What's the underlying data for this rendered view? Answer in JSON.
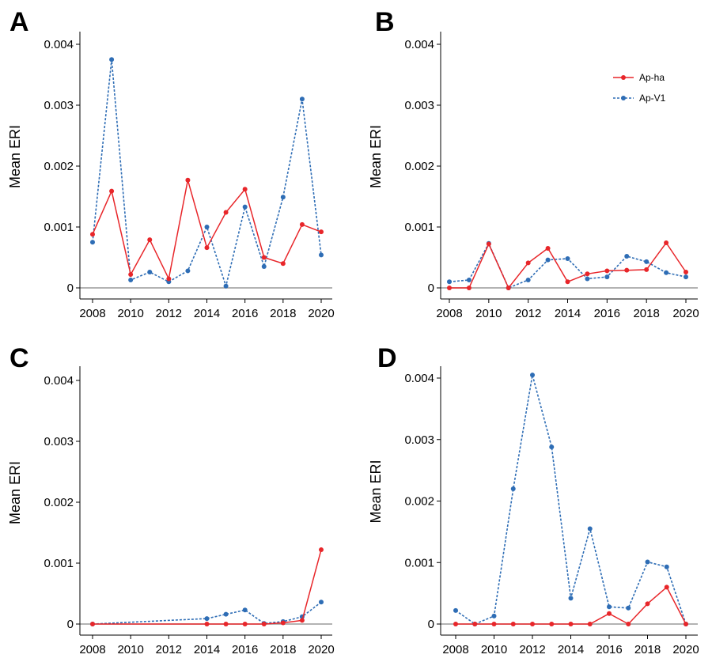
{
  "colors": {
    "ap_ha": "#e8262a",
    "ap_v1": "#2e6db5"
  },
  "chart_data": [
    {
      "type": "line",
      "panel": "A",
      "ylabel": "Mean ERI",
      "xlim": [
        2008,
        2020
      ],
      "ylim": [
        0,
        0.004
      ],
      "x_ticks": [
        "2008",
        "2010",
        "2012",
        "2014",
        "2016",
        "2018",
        "2020"
      ],
      "y_ticks": [
        "0",
        "0.001",
        "0.002",
        "0.003",
        "0.004"
      ],
      "legend": false,
      "series": [
        {
          "key": "ap_ha",
          "style": "solid",
          "x": [
            2008,
            2009,
            2010,
            2011,
            2012,
            2013,
            2014,
            2015,
            2016,
            2017,
            2018,
            2019,
            2020
          ],
          "y": [
            0.00088,
            0.00159,
            0.00022,
            0.00079,
            0.00015,
            0.00177,
            0.00066,
            0.00124,
            0.00162,
            0.0005,
            0.0004,
            0.00104,
            0.00092
          ]
        },
        {
          "key": "ap_v1",
          "style": "dotted",
          "x": [
            2008,
            2009,
            2010,
            2011,
            2012,
            2013,
            2014,
            2015,
            2016,
            2017,
            2018,
            2019,
            2020
          ],
          "y": [
            0.00075,
            0.00375,
            0.00013,
            0.00026,
            0.0001,
            0.00028,
            0.001,
            3e-05,
            0.00133,
            0.00035,
            0.00149,
            0.0031,
            0.00054
          ]
        }
      ]
    },
    {
      "type": "line",
      "panel": "B",
      "ylabel": "Mean ERI",
      "xlim": [
        2008,
        2020
      ],
      "ylim": [
        0,
        0.004
      ],
      "x_ticks": [
        "2008",
        "2010",
        "2012",
        "2014",
        "2016",
        "2018",
        "2020"
      ],
      "y_ticks": [
        "0",
        "0.001",
        "0.002",
        "0.003",
        "0.004"
      ],
      "legend": true,
      "legend_position": "top-right",
      "legend_entries": [
        "Ap-ha",
        "Ap-V1"
      ],
      "series": [
        {
          "key": "ap_ha",
          "name": "Ap-ha",
          "style": "solid",
          "x": [
            2008,
            2009,
            2010,
            2011,
            2012,
            2013,
            2014,
            2015,
            2016,
            2017,
            2018,
            2019,
            2020
          ],
          "y": [
            0,
            0,
            0.00072,
            0,
            0.00041,
            0.00065,
            0.0001,
            0.00023,
            0.00028,
            0.00029,
            0.0003,
            0.00074,
            0.00026
          ]
        },
        {
          "key": "ap_v1",
          "name": "Ap-V1",
          "style": "dotted",
          "x": [
            2008,
            2009,
            2010,
            2011,
            2012,
            2013,
            2014,
            2015,
            2016,
            2017,
            2018,
            2019,
            2020
          ],
          "y": [
            0.0001,
            0.00013,
            0.00073,
            0,
            0.00013,
            0.00046,
            0.00048,
            0.00015,
            0.00018,
            0.00052,
            0.00043,
            0.00025,
            0.00018
          ]
        }
      ]
    },
    {
      "type": "line",
      "panel": "C",
      "ylabel": "Mean ERI",
      "xlim": [
        2008,
        2020
      ],
      "ylim": [
        0,
        0.004
      ],
      "x_ticks": [
        "2008",
        "2010",
        "2012",
        "2014",
        "2016",
        "2018",
        "2020"
      ],
      "y_ticks": [
        "0",
        "0.001",
        "0.002",
        "0.003",
        "0.004"
      ],
      "legend": false,
      "series": [
        {
          "key": "ap_ha",
          "style": "solid",
          "x": [
            2008,
            2014,
            2015,
            2016,
            2017,
            2018,
            2019,
            2020
          ],
          "y": [
            0,
            0,
            0,
            0,
            0,
            2e-05,
            6e-05,
            0.00122
          ]
        },
        {
          "key": "ap_v1",
          "style": "dotted",
          "x": [
            2008,
            2014,
            2015,
            2016,
            2017,
            2018,
            2019,
            2020
          ],
          "y": [
            0,
            9e-05,
            0.00016,
            0.00023,
            1e-05,
            4e-05,
            0.00012,
            0.00036
          ]
        }
      ]
    },
    {
      "type": "line",
      "panel": "D",
      "ylabel": "Mean ERI",
      "xlim": [
        2008,
        2020
      ],
      "ylim": [
        0,
        0.004
      ],
      "x_ticks": [
        "2008",
        "2010",
        "2012",
        "2014",
        "2016",
        "2018",
        "2020"
      ],
      "y_ticks": [
        "0",
        "0.001",
        "0.002",
        "0.003",
        "0.004"
      ],
      "legend": false,
      "series": [
        {
          "key": "ap_ha",
          "style": "solid",
          "x": [
            2008,
            2009,
            2010,
            2011,
            2012,
            2013,
            2014,
            2015,
            2016,
            2017,
            2018,
            2019,
            2020
          ],
          "y": [
            0,
            0,
            0,
            0,
            0,
            0,
            0,
            0,
            0.00017,
            0,
            0.00033,
            0.0006,
            0
          ]
        },
        {
          "key": "ap_v1",
          "style": "dotted",
          "x": [
            2008,
            2009,
            2010,
            2011,
            2012,
            2013,
            2014,
            2015,
            2016,
            2017,
            2018,
            2019,
            2020
          ],
          "y": [
            0.00022,
            0,
            0.00013,
            0.0022,
            0.00405,
            0.00288,
            0.00042,
            0.00155,
            0.00028,
            0.00026,
            0.00101,
            0.00093,
            0
          ]
        }
      ]
    }
  ]
}
